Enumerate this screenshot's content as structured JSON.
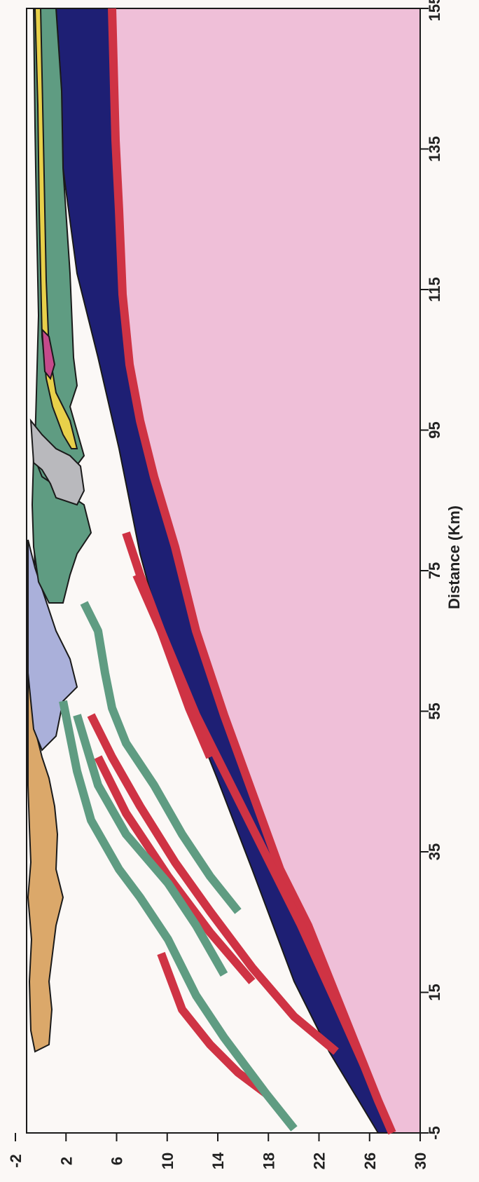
{
  "figure": {
    "x_axis_title": "Distance (Km)",
    "x_ticks": [
      "-5",
      "15",
      "35",
      "55",
      "75",
      "95",
      "115",
      "135",
      "155"
    ],
    "y_ticks": [
      "-2",
      "2",
      "6",
      "10",
      "14",
      "18",
      "22",
      "26",
      "30"
    ]
  },
  "colors": {
    "basement": "#efbfd8",
    "navy": "#1e1f74",
    "red": "#cf3344",
    "green": "#5f9c82",
    "tan": "#dba86a",
    "lavender": "#aab0da",
    "gray": "#b9b9bd",
    "yellow": "#e8d04a",
    "magenta": "#c44a8b",
    "outline": "#1a1a1a"
  }
}
